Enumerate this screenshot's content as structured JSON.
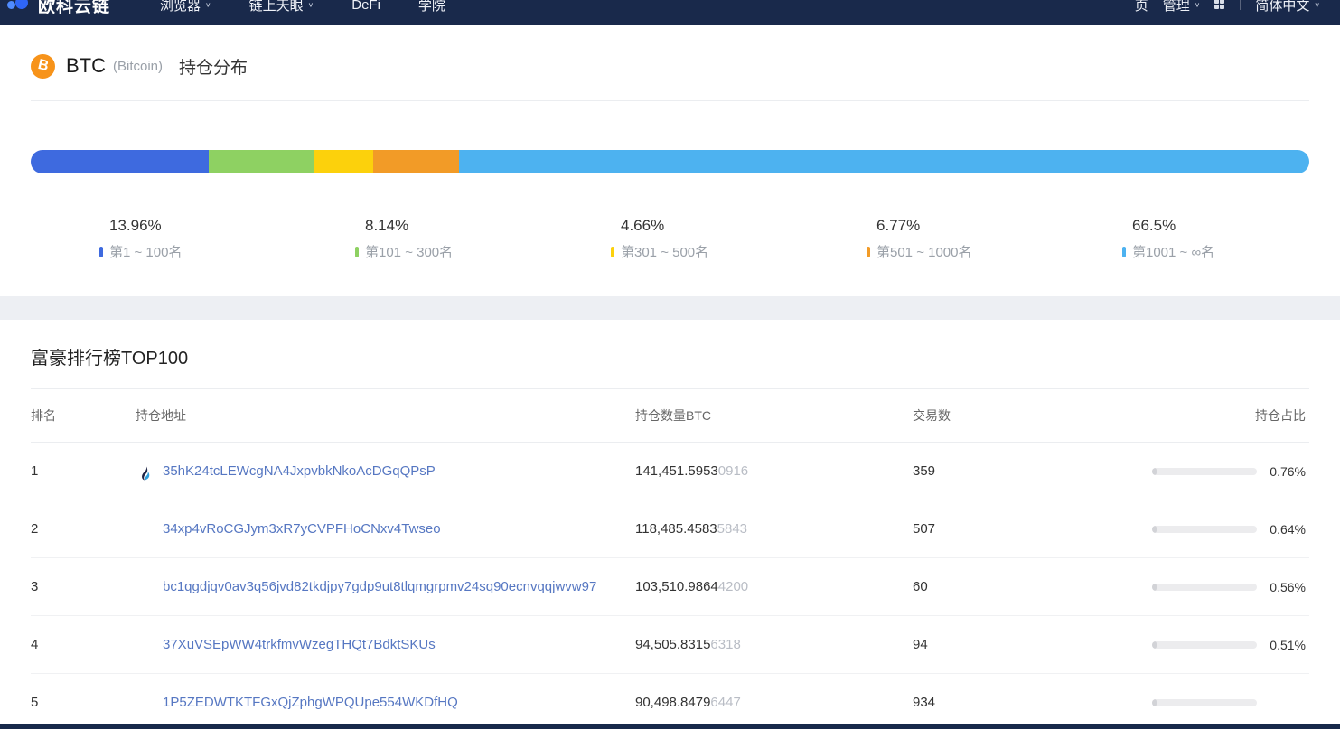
{
  "nav": {
    "brand": "欧科云链",
    "caret": "∨",
    "items": [
      "浏览器",
      "链上天眼",
      "DeFi",
      "学院"
    ],
    "right_items": [
      "页",
      "管理"
    ],
    "language": "简体中文"
  },
  "coin": {
    "symbol": "BTC",
    "name": "(Bitcoin)",
    "symbol_letter": "B",
    "section_title": "持仓分布"
  },
  "chart_data": {
    "type": "bar",
    "title": "BTC 持仓分布",
    "categories": [
      "第1 ~ 100名",
      "第101 ~ 300名",
      "第301 ~ 500名",
      "第501 ~ 1000名",
      "第1001 ~ ∞名"
    ],
    "values": [
      13.96,
      8.14,
      4.66,
      6.77,
      66.5
    ],
    "value_labels": [
      "13.96%",
      "8.14%",
      "4.66%",
      "6.77%",
      "66.5%"
    ],
    "colors": [
      "#3e6adf",
      "#8ed162",
      "#fcd10c",
      "#f29b27",
      "#4db2f0"
    ],
    "unit": "%",
    "legend_position": "bottom"
  },
  "table": {
    "title": "富豪排行榜TOP100",
    "headers": [
      "排名",
      "持仓地址",
      "持仓数量BTC",
      "交易数",
      "持仓占比"
    ],
    "rows": [
      {
        "rank": "1",
        "address": "35hK24tcLEWcgNA4JxpvbkNkoAcDGqQPsP",
        "exchange_icon": "huobi",
        "amount_main": "141,451.5953",
        "amount_dim": "0916",
        "tx_count": "359",
        "percent": "0.76%"
      },
      {
        "rank": "2",
        "address": "34xp4vRoCGJym3xR7yCVPFHoCNxv4Twseo",
        "amount_main": "118,485.4583",
        "amount_dim": "5843",
        "tx_count": "507",
        "percent": "0.64%"
      },
      {
        "rank": "3",
        "address": "bc1qgdjqv0av3q56jvd82tkdjpy7gdp9ut8tlqmgrpmv24sq90ecnvqqjwvw97",
        "amount_main": "103,510.9864",
        "amount_dim": "4200",
        "tx_count": "60",
        "percent": "0.56%"
      },
      {
        "rank": "4",
        "address": "37XuVSEpWW4trkfmvWzegTHQt7BdktSKUs",
        "amount_main": "94,505.8315",
        "amount_dim": "6318",
        "tx_count": "94",
        "percent": "0.51%"
      },
      {
        "rank": "5",
        "address": "1P5ZEDWTKTFGxQjZphgWPQUpe554WKDfHQ",
        "amount_main": "90,498.8479",
        "amount_dim": "6447",
        "tx_count": "934",
        "percent": ""
      }
    ]
  }
}
